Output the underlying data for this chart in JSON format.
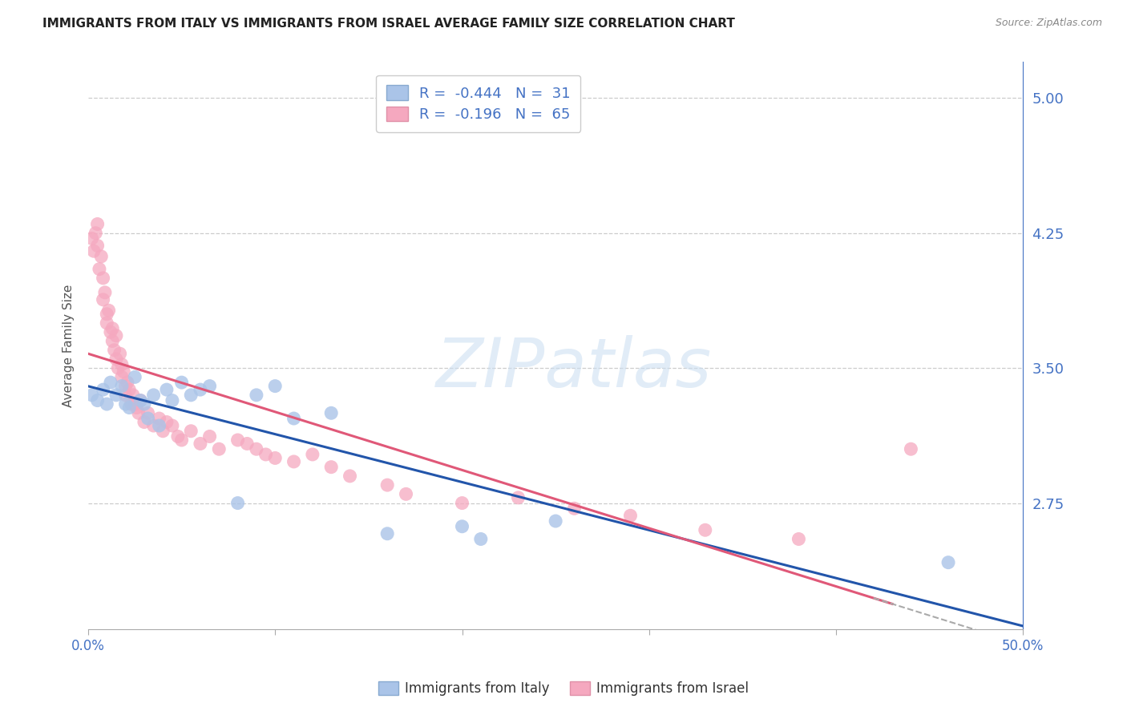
{
  "title": "IMMIGRANTS FROM ITALY VS IMMIGRANTS FROM ISRAEL AVERAGE FAMILY SIZE CORRELATION CHART",
  "source": "Source: ZipAtlas.com",
  "ylabel": "Average Family Size",
  "yticks": [
    2.75,
    3.5,
    4.25,
    5.0
  ],
  "ytick_labels": [
    "2.75",
    "3.50",
    "4.25",
    "5.00"
  ],
  "xlim": [
    0.0,
    0.5
  ],
  "ylim": [
    2.05,
    5.2
  ],
  "italy_color": "#aac4e8",
  "israel_color": "#f5a8bf",
  "italy_line_color": "#2255aa",
  "israel_line_color": "#e05878",
  "axis_color": "#4472c4",
  "grid_color": "#cccccc",
  "background_color": "#ffffff",
  "title_color": "#222222",
  "italy_scatter_x": [
    0.002,
    0.005,
    0.008,
    0.01,
    0.012,
    0.015,
    0.018,
    0.02,
    0.022,
    0.025,
    0.028,
    0.03,
    0.032,
    0.035,
    0.038,
    0.042,
    0.045,
    0.05,
    0.055,
    0.06,
    0.065,
    0.08,
    0.09,
    0.1,
    0.11,
    0.13,
    0.16,
    0.2,
    0.21,
    0.25,
    0.46
  ],
  "italy_scatter_y": [
    3.35,
    3.32,
    3.38,
    3.3,
    3.42,
    3.35,
    3.4,
    3.3,
    3.28,
    3.45,
    3.32,
    3.3,
    3.22,
    3.35,
    3.18,
    3.38,
    3.32,
    3.42,
    3.35,
    3.38,
    3.4,
    2.75,
    3.35,
    3.4,
    3.22,
    3.25,
    2.58,
    2.62,
    2.55,
    2.65,
    2.42
  ],
  "israel_scatter_x": [
    0.002,
    0.003,
    0.004,
    0.005,
    0.005,
    0.006,
    0.007,
    0.008,
    0.008,
    0.009,
    0.01,
    0.01,
    0.011,
    0.012,
    0.013,
    0.013,
    0.014,
    0.015,
    0.015,
    0.016,
    0.017,
    0.018,
    0.018,
    0.019,
    0.02,
    0.02,
    0.021,
    0.022,
    0.023,
    0.024,
    0.025,
    0.026,
    0.027,
    0.028,
    0.03,
    0.032,
    0.035,
    0.038,
    0.04,
    0.042,
    0.045,
    0.048,
    0.05,
    0.055,
    0.06,
    0.065,
    0.07,
    0.08,
    0.085,
    0.09,
    0.095,
    0.1,
    0.11,
    0.12,
    0.13,
    0.14,
    0.16,
    0.17,
    0.2,
    0.23,
    0.26,
    0.29,
    0.33,
    0.38,
    0.44
  ],
  "israel_scatter_y": [
    4.22,
    4.15,
    4.25,
    4.3,
    4.18,
    4.05,
    4.12,
    4.0,
    3.88,
    3.92,
    3.8,
    3.75,
    3.82,
    3.7,
    3.65,
    3.72,
    3.6,
    3.55,
    3.68,
    3.5,
    3.58,
    3.45,
    3.52,
    3.48,
    3.4,
    3.35,
    3.42,
    3.38,
    3.3,
    3.35,
    3.3,
    3.28,
    3.25,
    3.32,
    3.2,
    3.25,
    3.18,
    3.22,
    3.15,
    3.2,
    3.18,
    3.12,
    3.1,
    3.15,
    3.08,
    3.12,
    3.05,
    3.1,
    3.08,
    3.05,
    3.02,
    3.0,
    2.98,
    3.02,
    2.95,
    2.9,
    2.85,
    2.8,
    2.75,
    2.78,
    2.72,
    2.68,
    2.6,
    2.55,
    3.05
  ],
  "italy_R": "-0.444",
  "italy_N": "31",
  "israel_R": "-0.196",
  "israel_N": "65"
}
